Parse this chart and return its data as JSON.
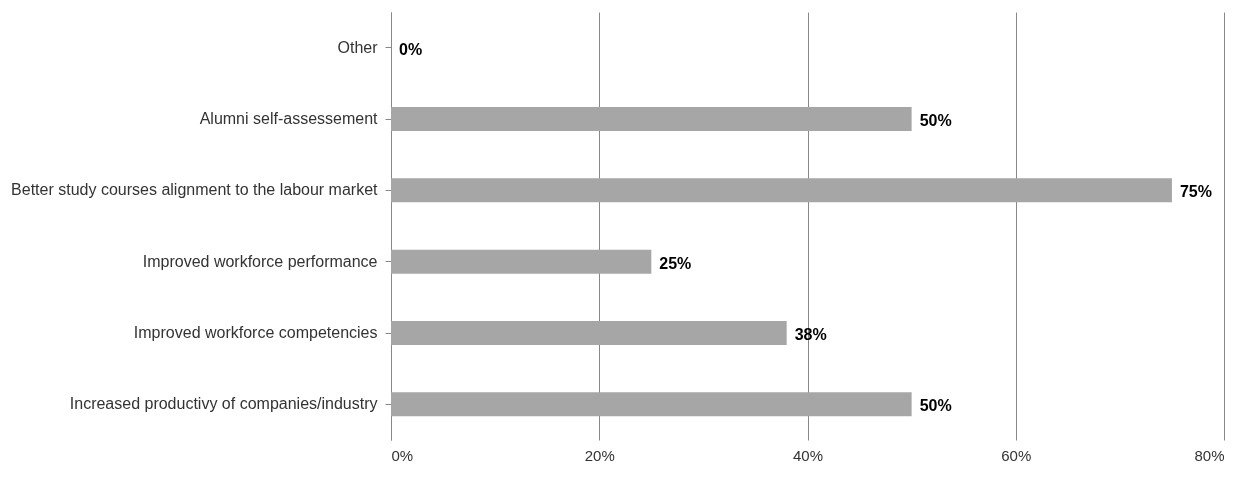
{
  "chart_data": {
    "type": "bar",
    "orientation": "horizontal",
    "categories": [
      "Other",
      "Alumni self-assessement",
      "Better study courses alignment to the labour market",
      "Improved workforce performance",
      "Improved workforce competencies",
      "Increased productivy of companies/industry"
    ],
    "values": [
      0,
      50,
      75,
      25,
      38,
      50
    ],
    "value_labels": [
      "0%",
      "50%",
      "75%",
      "25%",
      "38%",
      "50%"
    ],
    "color": "#a6a6a6",
    "xlim": [
      0,
      80
    ],
    "xticks": [
      {
        "value": 0,
        "label": "0%"
      },
      {
        "value": 20,
        "label": "20%"
      },
      {
        "value": 40,
        "label": "40%"
      },
      {
        "value": 60,
        "label": "60%"
      },
      {
        "value": 80,
        "label": "80%"
      }
    ],
    "grid": "x"
  }
}
